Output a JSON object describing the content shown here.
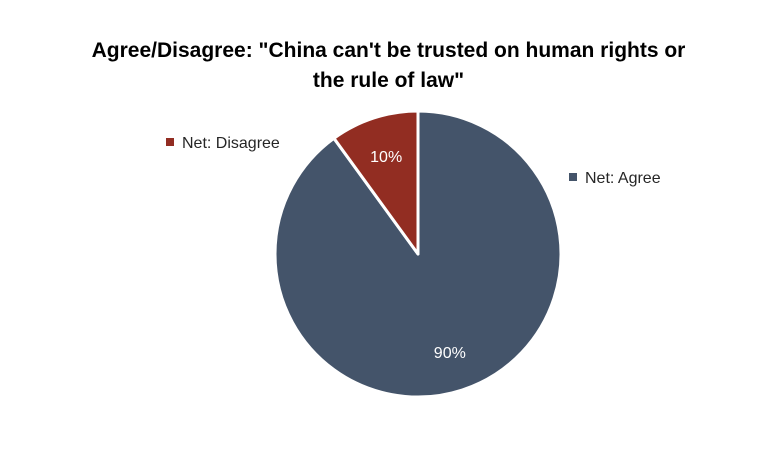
{
  "chart_data": {
    "type": "pie",
    "title": "Agree/Disagree: \"China can't be trusted on human rights or the rule of law\"",
    "title_lines": [
      "Agree/Disagree: \"China can't be trusted on human rights or",
      "the rule of law\""
    ],
    "categories": [
      "Net: Agree",
      "Net: Disagree"
    ],
    "values": [
      90,
      10
    ],
    "data_labels": [
      "90%",
      "10%"
    ],
    "colors": [
      "#44546a",
      "#922d22"
    ],
    "legend": {
      "entries": [
        "Net: Disagree",
        "Net: Agree"
      ]
    }
  }
}
